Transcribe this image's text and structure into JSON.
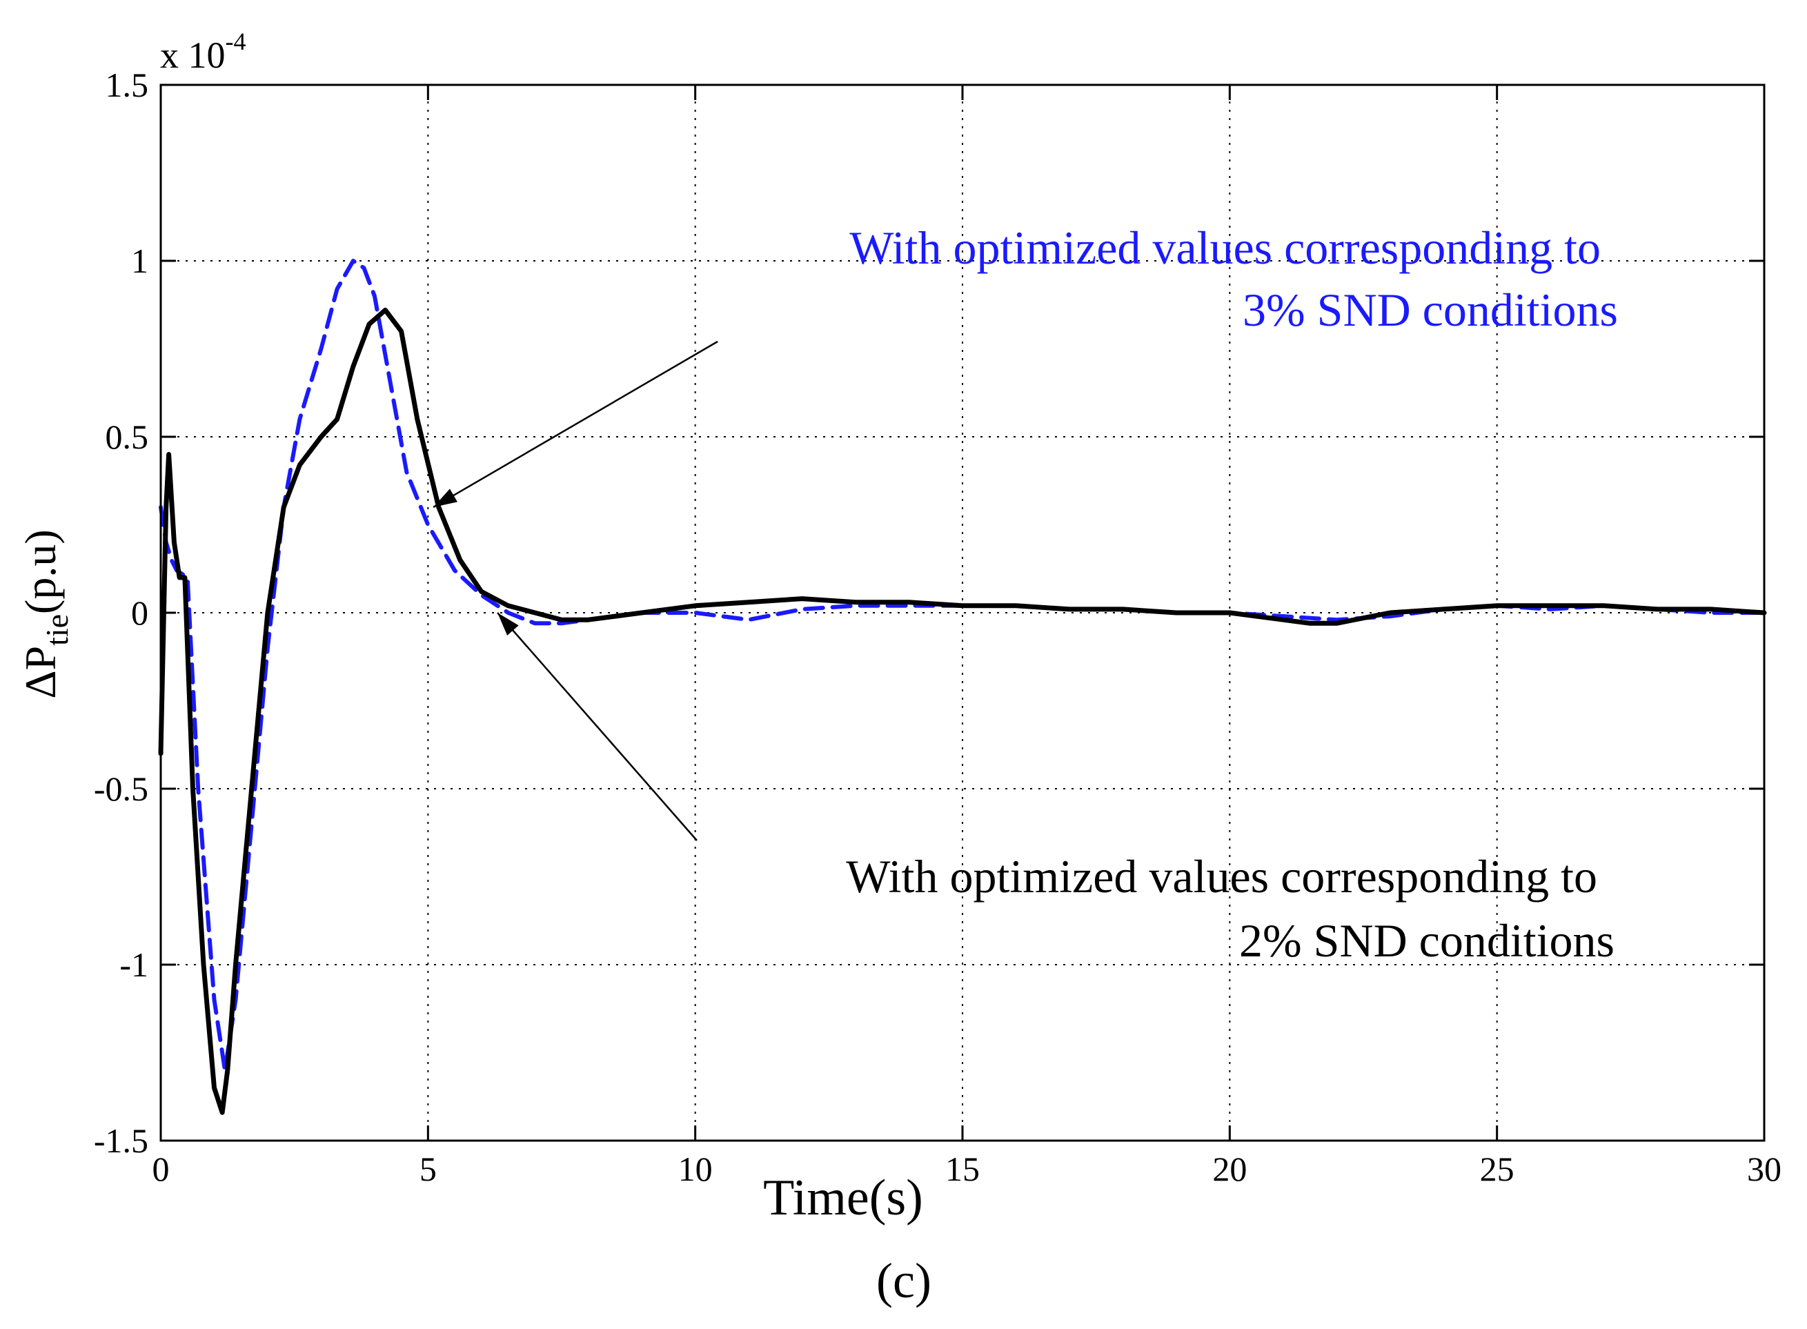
{
  "chart_data": {
    "type": "line",
    "title": "",
    "xlabel": "Time(s)",
    "ylabel_main": "ΔP",
    "ylabel_sub": "tie",
    "ylabel_unit": "(p.u)",
    "y_multiplier": "x 10",
    "y_multiplier_exp": "-4",
    "xlim": [
      0,
      30
    ],
    "ylim": [
      -1.5,
      1.5
    ],
    "xticks": [
      0,
      5,
      10,
      15,
      20,
      25,
      30
    ],
    "xtick_labels": [
      "0",
      "5",
      "10",
      "15",
      "20",
      "25",
      "30"
    ],
    "yticks": [
      -1.5,
      -1,
      -0.5,
      0,
      0.5,
      1,
      1.5
    ],
    "ytick_labels": [
      "-1.5",
      "-1",
      "-0.5",
      "0",
      "0.5",
      "1",
      "1.5"
    ],
    "grid": true,
    "caption": "(c)",
    "series": [
      {
        "name": "With optimized values corresponding to 3% SND conditions",
        "color": "#1a1aff",
        "style": "dashed",
        "x": [
          0,
          0.1,
          0.2,
          0.3,
          0.5,
          0.7,
          1.0,
          1.2,
          1.4,
          1.7,
          2.0,
          2.3,
          2.6,
          3.0,
          3.3,
          3.6,
          3.8,
          4.0,
          4.3,
          4.6,
          5.0,
          5.5,
          6.0,
          6.5,
          7.0,
          7.5,
          8.0,
          9.0,
          10.0,
          11.0,
          12.0,
          13.0,
          14.0,
          15.0,
          16.0,
          17.0,
          18.0,
          19.0,
          20.0,
          21.0,
          22.0,
          23.0,
          24.0,
          25.0,
          26.0,
          27.0,
          28.0,
          29.0,
          30.0
        ],
        "values": [
          0.3,
          0.2,
          0.15,
          0.12,
          0.1,
          -0.5,
          -1.1,
          -1.3,
          -1.1,
          -0.6,
          -0.1,
          0.3,
          0.55,
          0.75,
          0.92,
          1.0,
          0.98,
          0.9,
          0.65,
          0.4,
          0.25,
          0.12,
          0.05,
          0.0,
          -0.03,
          -0.03,
          -0.02,
          0.0,
          0.0,
          -0.02,
          0.01,
          0.02,
          0.02,
          0.02,
          0.02,
          0.01,
          0.01,
          0.0,
          0.0,
          -0.01,
          -0.02,
          -0.01,
          0.01,
          0.02,
          0.01,
          0.02,
          0.01,
          0.0,
          0.0
        ]
      },
      {
        "name": "With optimized values corresponding to 2% SND conditions",
        "color": "#000000",
        "style": "solid",
        "x": [
          0,
          0.1,
          0.15,
          0.25,
          0.35,
          0.45,
          0.6,
          0.8,
          1.0,
          1.15,
          1.25,
          1.4,
          1.7,
          2.0,
          2.3,
          2.6,
          3.0,
          3.3,
          3.6,
          3.9,
          4.2,
          4.5,
          4.8,
          5.2,
          5.6,
          6.0,
          6.5,
          7.0,
          7.5,
          8.0,
          9.0,
          10.0,
          11.0,
          12.0,
          13.0,
          14.0,
          15.0,
          16.0,
          17.0,
          18.0,
          19.0,
          20.0,
          21.0,
          21.5,
          22.0,
          23.0,
          24.0,
          25.0,
          26.0,
          27.0,
          28.0,
          29.0,
          30.0
        ],
        "values": [
          -0.4,
          0.3,
          0.45,
          0.2,
          0.1,
          0.1,
          -0.5,
          -1.0,
          -1.35,
          -1.42,
          -1.3,
          -1.0,
          -0.5,
          0.0,
          0.3,
          0.42,
          0.5,
          0.55,
          0.7,
          0.82,
          0.86,
          0.8,
          0.55,
          0.3,
          0.15,
          0.06,
          0.02,
          0.0,
          -0.02,
          -0.02,
          0.0,
          0.02,
          0.03,
          0.04,
          0.03,
          0.03,
          0.02,
          0.02,
          0.01,
          0.01,
          0.0,
          0.0,
          -0.02,
          -0.03,
          -0.03,
          0.0,
          0.01,
          0.02,
          0.02,
          0.02,
          0.01,
          0.01,
          0.0
        ]
      }
    ],
    "annotations": [
      {
        "line1": "With optimized values corresponding to",
        "line2": "3% SND conditions",
        "color": "#1a1aff",
        "arrow_to": [
          5.1,
          0.3
        ]
      },
      {
        "line1": "With optimized values corresponding to",
        "line2": "2% SND conditions",
        "color": "#000000",
        "arrow_to": [
          6.3,
          0.0
        ]
      }
    ]
  }
}
